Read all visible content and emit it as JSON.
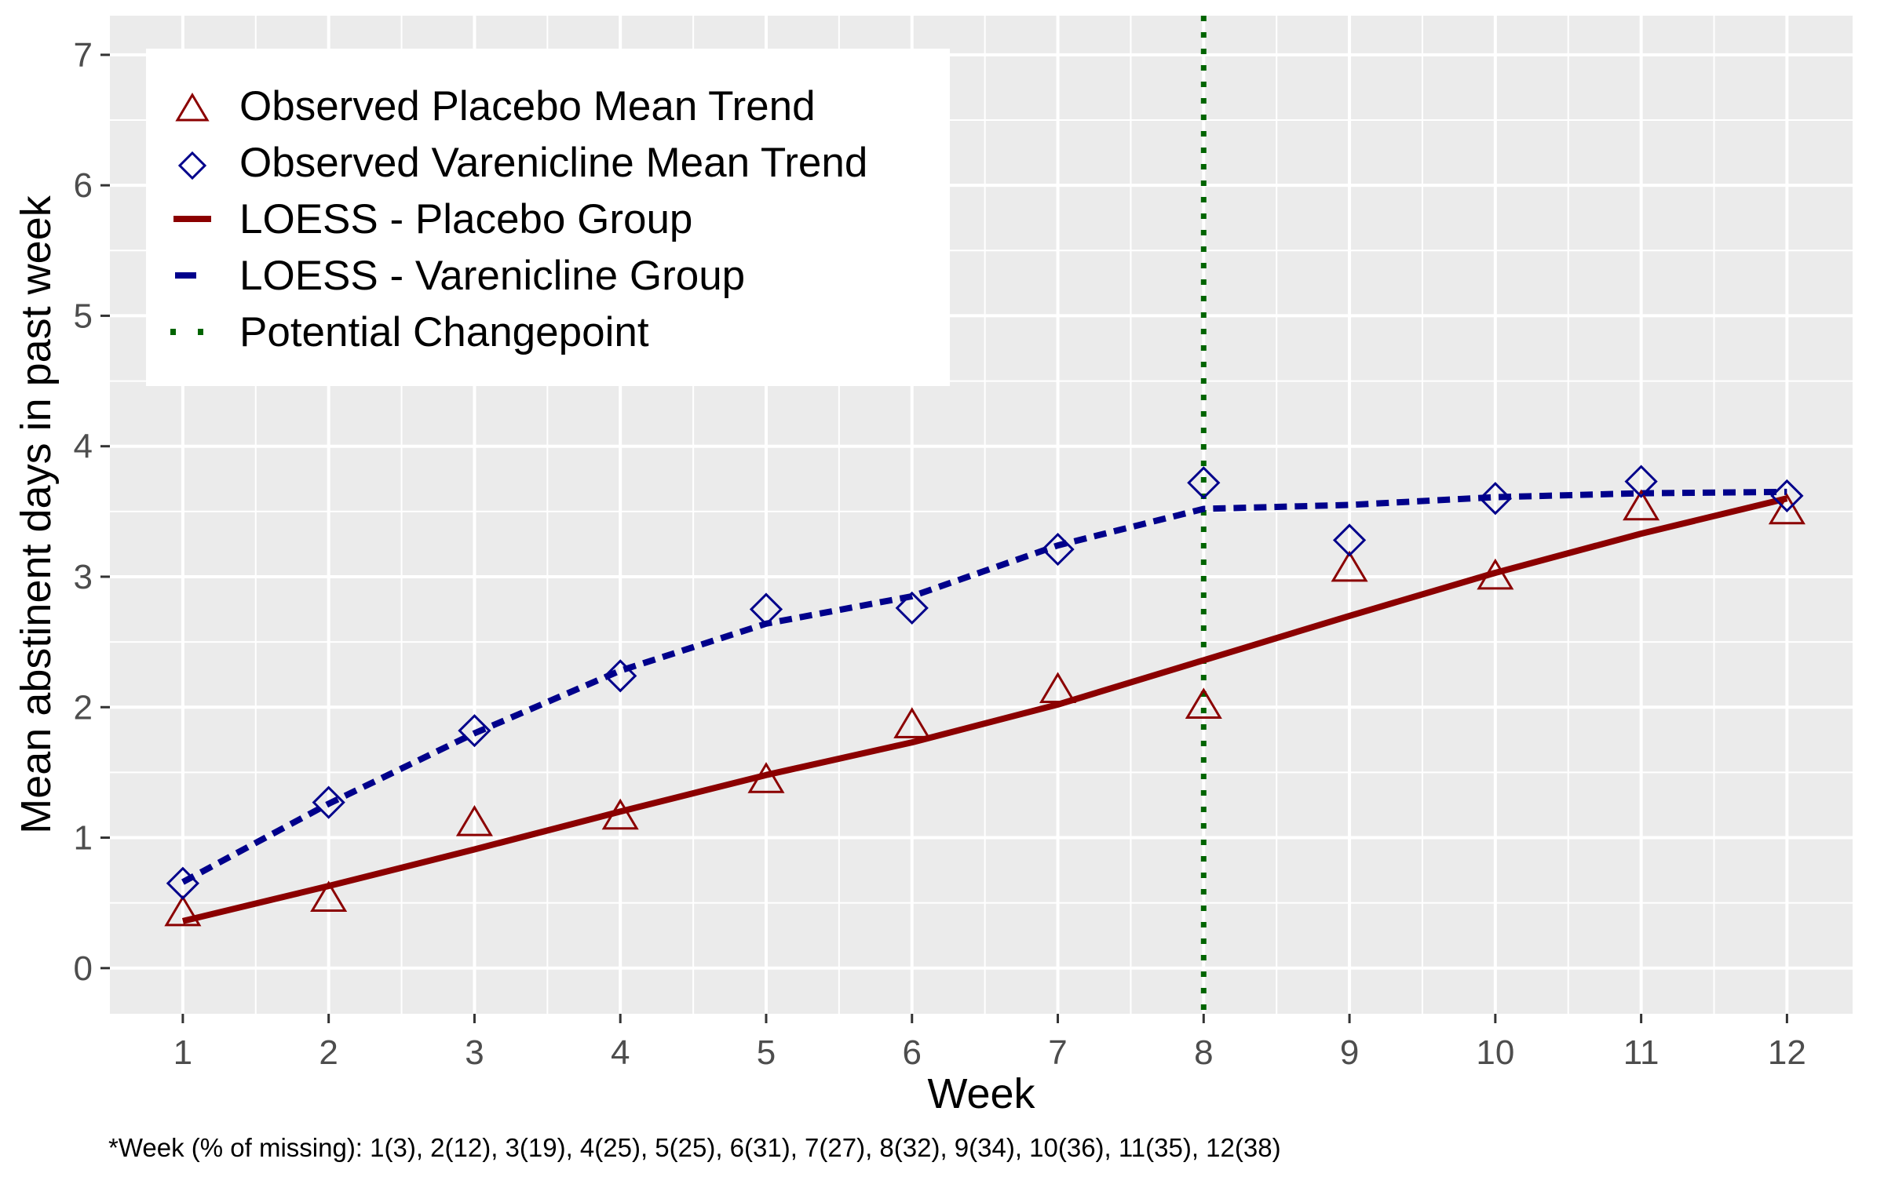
{
  "chart_data": {
    "type": "line",
    "xlabel": "Week",
    "ylabel": "Mean abstinent days in past week",
    "x": [
      1,
      2,
      3,
      4,
      5,
      6,
      7,
      8,
      9,
      10,
      11,
      12
    ],
    "x_ticks": [
      "1",
      "2",
      "3",
      "4",
      "5",
      "6",
      "7",
      "8",
      "9",
      "10",
      "11",
      "12"
    ],
    "y_ticks": [
      "0",
      "1",
      "2",
      "3",
      "4",
      "5",
      "6",
      "7"
    ],
    "xlim": [
      0.5,
      12.45
    ],
    "ylim": [
      -0.35,
      7.3
    ],
    "grid": true,
    "legend_position": "top-left",
    "series": [
      {
        "name": "Observed Placebo Mean Trend",
        "kind": "points",
        "marker": "triangle",
        "color": "#8b0000",
        "values": [
          0.41,
          0.52,
          1.1,
          1.15,
          1.43,
          1.85,
          2.12,
          2.0,
          3.05,
          2.99,
          3.52,
          3.49
        ]
      },
      {
        "name": "Observed Varenicline Mean Trend",
        "kind": "points",
        "marker": "diamond",
        "color": "#00008b",
        "values": [
          0.65,
          1.27,
          1.82,
          2.24,
          2.75,
          2.76,
          3.21,
          3.72,
          3.28,
          3.6,
          3.73,
          3.62
        ]
      },
      {
        "name": "LOESS - Placebo Group",
        "kind": "line",
        "style": "solid",
        "color": "#8b0000",
        "values": [
          0.36,
          0.63,
          0.91,
          1.2,
          1.48,
          1.73,
          2.02,
          2.36,
          2.7,
          3.03,
          3.33,
          3.6
        ]
      },
      {
        "name": "LOESS - Varenicline Group",
        "kind": "line",
        "style": "dashed",
        "color": "#00008b",
        "values": [
          0.66,
          1.26,
          1.8,
          2.28,
          2.64,
          2.85,
          3.24,
          3.52,
          3.55,
          3.61,
          3.64,
          3.65
        ]
      }
    ],
    "vline": {
      "name": "Potential Changepoint",
      "x": 8,
      "style": "dotted",
      "color": "#006400"
    },
    "footnote": "*Week (% of missing): 1(3), 2(12), 3(19), 4(25), 5(25), 6(31), 7(27), 8(32), 9(34), 10(36), 11(35), 12(38)"
  }
}
